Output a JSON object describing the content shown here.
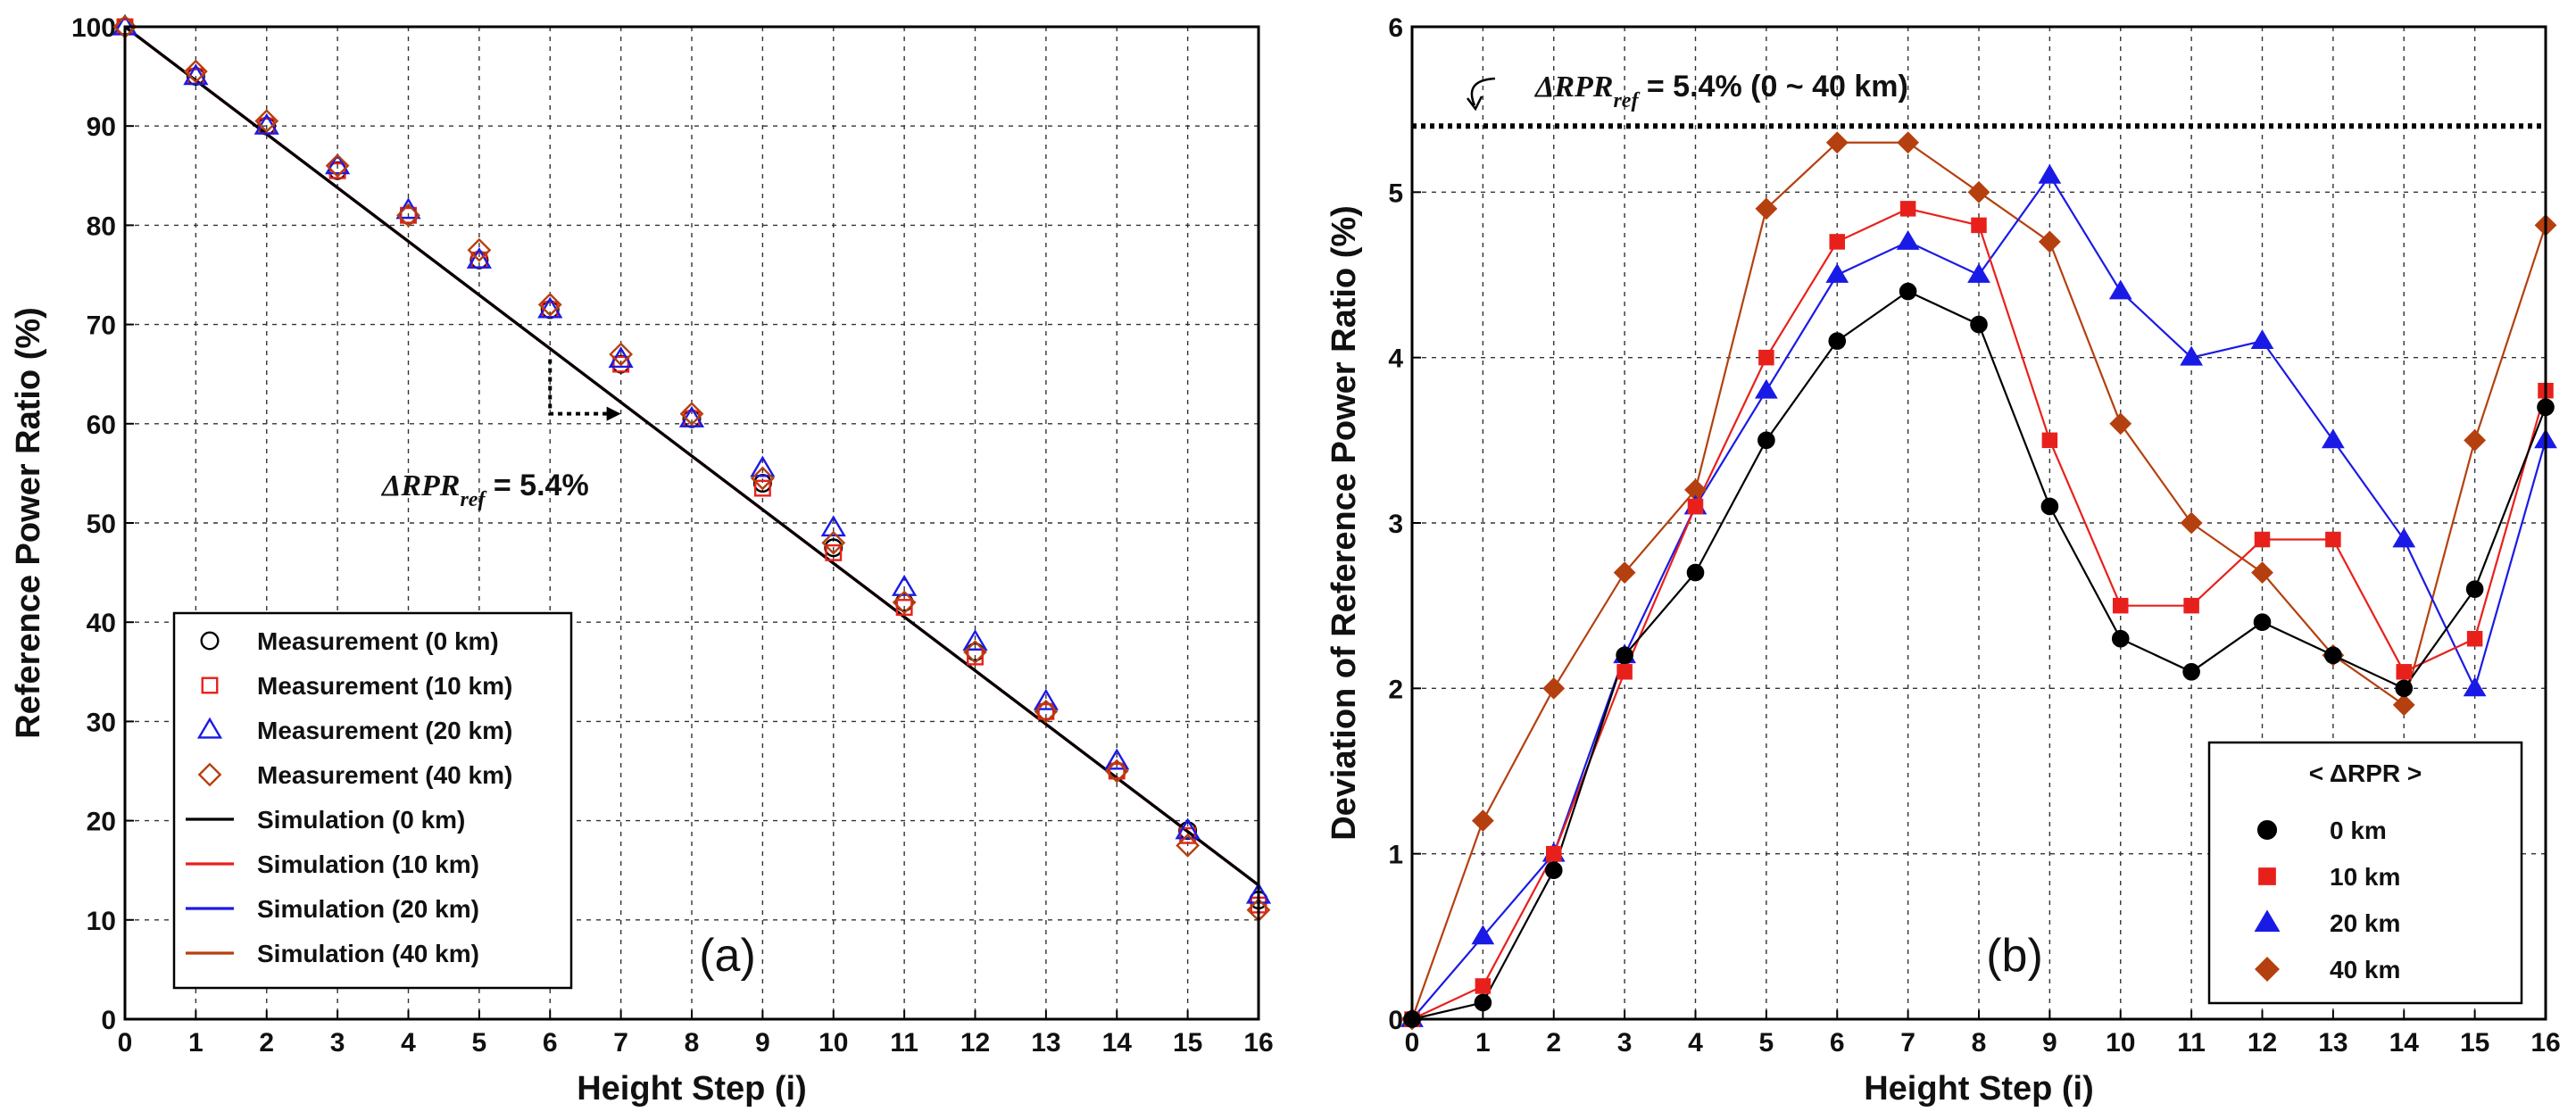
{
  "chart_data": [
    {
      "type": "scatter",
      "panel_label": "(a)",
      "xlabel": "Height Step (i)",
      "ylabel": "Reference Power Ratio (%)",
      "xlim": [
        0,
        16
      ],
      "ylim": [
        0,
        100
      ],
      "xticks": [
        "0",
        "1",
        "2",
        "3",
        "4",
        "5",
        "6",
        "7",
        "8",
        "9",
        "10",
        "11",
        "12",
        "13",
        "14",
        "15",
        "16"
      ],
      "yticks": [
        "0",
        "10",
        "20",
        "30",
        "40",
        "50",
        "60",
        "70",
        "80",
        "90",
        "100"
      ],
      "grid": true,
      "legend_position": "bottom-left",
      "x": [
        0,
        1,
        2,
        3,
        4,
        5,
        6,
        7,
        8,
        9,
        10,
        11,
        12,
        13,
        14,
        15,
        16
      ],
      "series": [
        {
          "name": "Measurement (0 km)",
          "marker": "circle",
          "color": "#000000",
          "values": [
            100,
            95,
            90,
            85.5,
            81,
            76.5,
            71.5,
            66,
            60.5,
            54,
            47.5,
            42,
            37,
            31,
            25,
            19,
            12
          ]
        },
        {
          "name": "Measurement (10 km)",
          "marker": "square",
          "color": "#e8201c",
          "values": [
            100,
            95,
            90,
            85.5,
            81,
            76.5,
            71.5,
            66,
            60.5,
            53.5,
            47,
            41.5,
            36.5,
            31,
            25,
            18.5,
            11.5
          ]
        },
        {
          "name": "Measurement (20 km)",
          "marker": "triangle",
          "color": "#1a1ae6",
          "values": [
            100,
            95,
            90,
            86,
            81.5,
            76.5,
            71.5,
            66.5,
            60.5,
            55.5,
            49.5,
            43.5,
            38,
            32,
            26,
            19,
            12.5
          ]
        },
        {
          "name": "Measurement (40 km)",
          "marker": "diamond",
          "color": "#b5400f",
          "values": [
            100,
            95.5,
            90.5,
            86,
            81,
            77.5,
            72,
            67,
            61,
            54.5,
            48,
            42,
            37,
            31,
            25,
            17.5,
            11
          ]
        }
      ],
      "simulation": [
        {
          "name": "Simulation (0 km)",
          "color": "#000000",
          "x": [
            0,
            16
          ],
          "values": [
            100,
            13.5
          ]
        },
        {
          "name": "Simulation (10 km)",
          "color": "#e8201c",
          "x": [
            0,
            16
          ],
          "values": [
            100,
            13.5
          ]
        },
        {
          "name": "Simulation (20 km)",
          "color": "#1a1ae6",
          "x": [
            0,
            16
          ],
          "values": [
            100,
            13.5
          ]
        },
        {
          "name": "Simulation (40 km)",
          "color": "#b5400f",
          "x": [
            0,
            16
          ],
          "values": [
            100,
            13.5
          ]
        }
      ],
      "annotation": {
        "text_main": "ΔRPR",
        "text_sub": "ref",
        "text_value": " = 5.4%",
        "bracket": {
          "x_from": 6,
          "x_to": 7,
          "y_from": 66.5,
          "y_to": 61
        }
      }
    },
    {
      "type": "line",
      "panel_label": "(b)",
      "xlabel": "Height Step (i)",
      "ylabel": "Deviation of Reference Power Ratio (%)",
      "xlim": [
        0,
        16
      ],
      "ylim": [
        0,
        6
      ],
      "xticks": [
        "0",
        "1",
        "2",
        "3",
        "4",
        "5",
        "6",
        "7",
        "8",
        "9",
        "10",
        "11",
        "12",
        "13",
        "14",
        "15",
        "16"
      ],
      "yticks": [
        "0",
        "1",
        "2",
        "3",
        "4",
        "5",
        "6"
      ],
      "grid": true,
      "legend_position": "bottom-right",
      "legend_title": "< ΔRPR >",
      "x": [
        0,
        1,
        2,
        3,
        4,
        5,
        6,
        7,
        8,
        9,
        10,
        11,
        12,
        13,
        14,
        15,
        16
      ],
      "series": [
        {
          "name": "0 km",
          "marker": "circle",
          "color": "#000000",
          "values": [
            0,
            0.1,
            0.9,
            2.2,
            2.7,
            3.5,
            4.1,
            4.4,
            4.2,
            3.1,
            2.3,
            2.1,
            2.4,
            2.2,
            2.0,
            2.6,
            3.7
          ]
        },
        {
          "name": "10 km",
          "marker": "square",
          "color": "#e8201c",
          "values": [
            0,
            0.2,
            1.0,
            2.1,
            3.1,
            4.0,
            4.7,
            4.9,
            4.8,
            3.5,
            2.5,
            2.5,
            2.9,
            2.9,
            2.1,
            2.3,
            3.8
          ]
        },
        {
          "name": "20 km",
          "marker": "triangle",
          "color": "#1a1ae6",
          "values": [
            0,
            0.5,
            1.0,
            2.2,
            3.1,
            3.8,
            4.5,
            4.7,
            4.5,
            5.1,
            4.4,
            4.0,
            4.1,
            3.5,
            2.9,
            2.0,
            3.5
          ]
        },
        {
          "name": "40 km",
          "marker": "diamond",
          "color": "#b5400f",
          "values": [
            0,
            1.2,
            2.0,
            2.7,
            3.2,
            4.9,
            5.3,
            5.3,
            5.0,
            4.7,
            3.6,
            3.0,
            2.7,
            2.2,
            1.9,
            3.5,
            4.8
          ]
        }
      ],
      "reference_line": {
        "y": 5.4,
        "style": "dotted"
      },
      "annotation": {
        "text_main": "ΔRPR",
        "text_sub": "ref",
        "text_value": " = 5.4% (0 ~ 40 km)"
      }
    }
  ]
}
